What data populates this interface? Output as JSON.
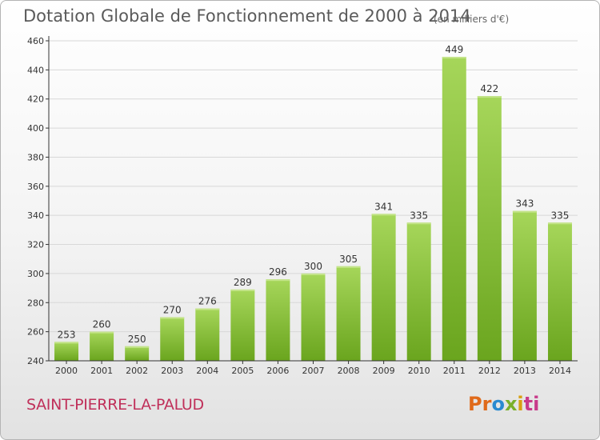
{
  "header": {
    "title": "Dotation Globale de Fonctionnement de 2000 à 2014",
    "unit": "(en milliers d'€)"
  },
  "footer": {
    "commune": "SAINT-PIERRE-LA-PALUD",
    "logo": [
      "Pr",
      "o",
      "x",
      "i",
      "ti"
    ]
  },
  "chart_data": {
    "type": "bar",
    "categories": [
      "2000",
      "2001",
      "2002",
      "2003",
      "2004",
      "2005",
      "2006",
      "2007",
      "2008",
      "2009",
      "2010",
      "2011",
      "2012",
      "2013",
      "2014"
    ],
    "values": [
      253,
      260,
      250,
      270,
      276,
      289,
      296,
      300,
      305,
      341,
      335,
      449,
      422,
      343,
      335
    ],
    "title": "Dotation Globale de Fonctionnement de 2000 à 2014",
    "xlabel": "",
    "ylabel": "",
    "ylim": [
      240,
      460
    ],
    "yticks": [
      240,
      260,
      280,
      300,
      320,
      340,
      360,
      380,
      400,
      420,
      440,
      460
    ],
    "grid": true,
    "colors": {
      "bar_light": "#a6d65a",
      "bar_dark": "#6aa51e",
      "axis": "#333333",
      "grid": "#d8d8d8"
    }
  }
}
